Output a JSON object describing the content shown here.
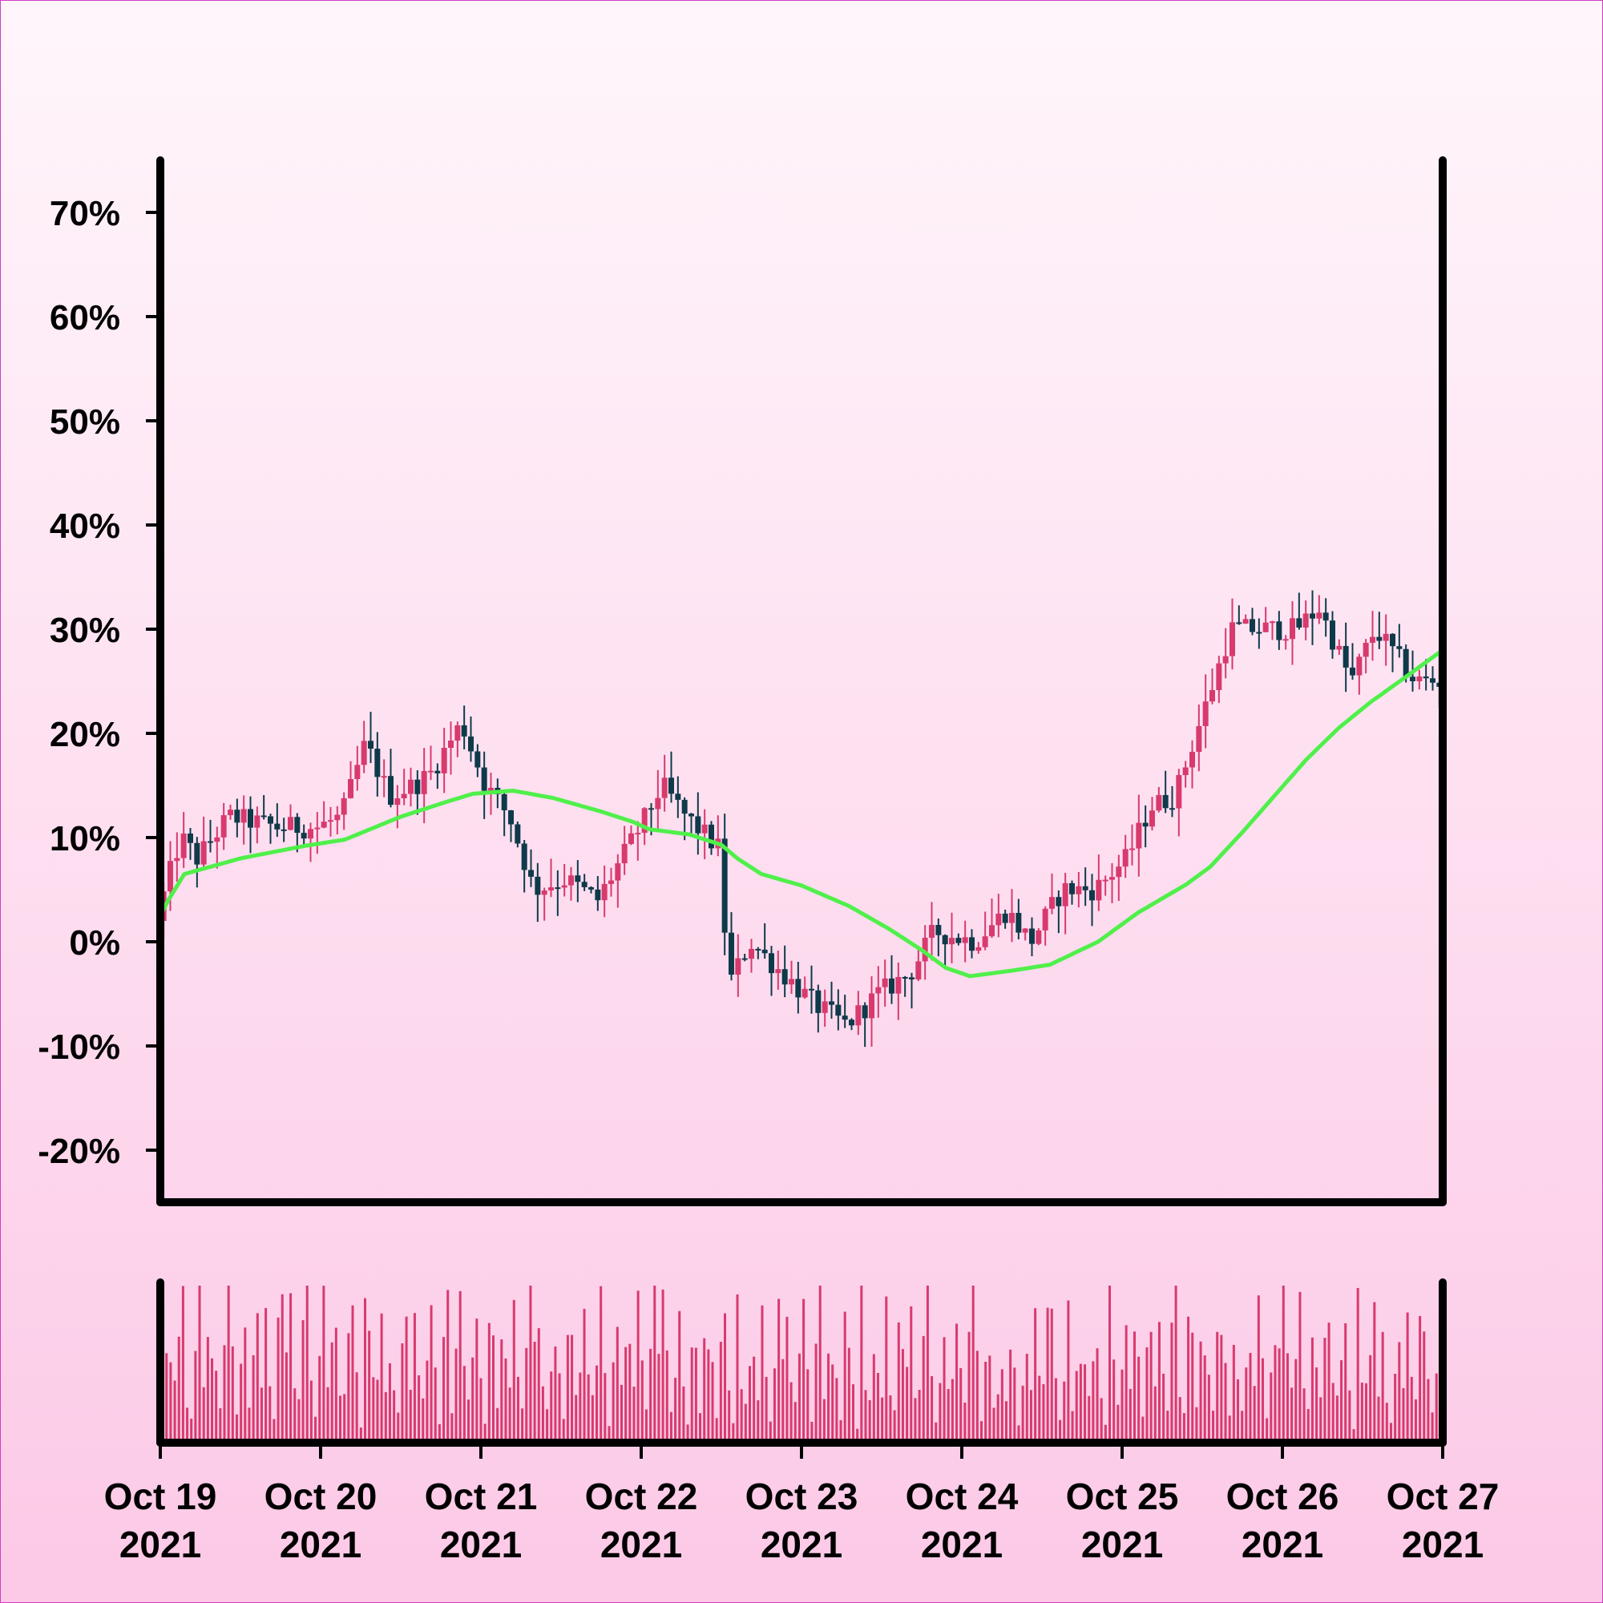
{
  "colors": {
    "up": "#d83a6e",
    "down": "#0e3a4a",
    "ma": "#4ff04a",
    "volume": "#d83a6e",
    "axis": "#000000"
  },
  "chart_data": {
    "type": "candlestick",
    "title": "",
    "xlabel": "",
    "ylabel": "",
    "ylim": [
      -25,
      75
    ],
    "yticks": [
      {
        "value": 70,
        "label": "70%"
      },
      {
        "value": 60,
        "label": "60%"
      },
      {
        "value": 50,
        "label": "50%"
      },
      {
        "value": 40,
        "label": "40%"
      },
      {
        "value": 30,
        "label": "30%"
      },
      {
        "value": 20,
        "label": "20%"
      },
      {
        "value": 10,
        "label": "10%"
      },
      {
        "value": 0,
        "label": "0%"
      },
      {
        "value": -10,
        "label": "-10%"
      },
      {
        "value": -20,
        "label": "-20%"
      }
    ],
    "xticks": [
      {
        "day": 0,
        "line1": "Oct 19",
        "line2": "2021"
      },
      {
        "day": 1,
        "line1": "Oct 20",
        "line2": "2021"
      },
      {
        "day": 2,
        "line1": "Oct 21",
        "line2": "2021"
      },
      {
        "day": 3,
        "line1": "Oct 22",
        "line2": "2021"
      },
      {
        "day": 4,
        "line1": "Oct 23",
        "line2": "2021"
      },
      {
        "day": 5,
        "line1": "Oct 24",
        "line2": "2021"
      },
      {
        "day": 6,
        "line1": "Oct 25",
        "line2": "2021"
      },
      {
        "day": 7,
        "line1": "Oct 26",
        "line2": "2021"
      },
      {
        "day": 8,
        "line1": "Oct 27",
        "line2": "2021"
      }
    ],
    "price_anchors": [
      [
        0,
        2
      ],
      [
        0.05,
        5
      ],
      [
        0.15,
        10
      ],
      [
        0.25,
        8
      ],
      [
        0.45,
        12
      ],
      [
        0.75,
        11
      ],
      [
        1.0,
        11
      ],
      [
        1.15,
        12
      ],
      [
        1.3,
        19
      ],
      [
        1.45,
        14
      ],
      [
        1.6,
        15
      ],
      [
        1.7,
        16
      ],
      [
        1.9,
        21
      ],
      [
        2.05,
        15
      ],
      [
        2.2,
        12
      ],
      [
        2.35,
        5
      ],
      [
        2.55,
        6
      ],
      [
        2.75,
        4
      ],
      [
        2.9,
        8
      ],
      [
        3.05,
        12
      ],
      [
        3.15,
        15
      ],
      [
        3.3,
        12
      ],
      [
        3.5,
        9
      ],
      [
        3.57,
        -4
      ],
      [
        3.7,
        0
      ],
      [
        3.9,
        -3
      ],
      [
        4.1,
        -6
      ],
      [
        4.3,
        -8
      ],
      [
        4.5,
        -5
      ],
      [
        4.7,
        -3
      ],
      [
        4.85,
        1
      ],
      [
        5.1,
        0
      ],
      [
        5.3,
        3
      ],
      [
        5.45,
        0
      ],
      [
        5.65,
        5
      ],
      [
        5.85,
        5
      ],
      [
        6.05,
        8
      ],
      [
        6.2,
        13
      ],
      [
        6.35,
        14
      ],
      [
        6.55,
        23
      ],
      [
        6.7,
        30
      ],
      [
        6.9,
        30
      ],
      [
        7.1,
        30
      ],
      [
        7.25,
        32
      ],
      [
        7.45,
        25
      ],
      [
        7.6,
        30
      ],
      [
        7.75,
        27
      ],
      [
        7.85,
        25
      ],
      [
        8.0,
        25
      ]
    ],
    "moving_average": [
      [
        0,
        2.5
      ],
      [
        0.05,
        4
      ],
      [
        0.15,
        6.5
      ],
      [
        0.5,
        8
      ],
      [
        0.9,
        9.2
      ],
      [
        1.15,
        9.8
      ],
      [
        1.5,
        12
      ],
      [
        1.8,
        13.5
      ],
      [
        1.95,
        14.2
      ],
      [
        2.2,
        14.5
      ],
      [
        2.45,
        13.8
      ],
      [
        2.75,
        12.5
      ],
      [
        2.95,
        11.5
      ],
      [
        3.05,
        10.8
      ],
      [
        3.3,
        10.3
      ],
      [
        3.5,
        9.3
      ],
      [
        3.6,
        8
      ],
      [
        3.75,
        6.5
      ],
      [
        4.0,
        5.4
      ],
      [
        4.3,
        3.4
      ],
      [
        4.55,
        1.2
      ],
      [
        4.75,
        -0.8
      ],
      [
        4.9,
        -2.5
      ],
      [
        5.05,
        -3.3
      ],
      [
        5.3,
        -2.8
      ],
      [
        5.55,
        -2.2
      ],
      [
        5.85,
        0
      ],
      [
        6.1,
        2.8
      ],
      [
        6.4,
        5.5
      ],
      [
        6.55,
        7.2
      ],
      [
        6.75,
        10.5
      ],
      [
        6.95,
        14
      ],
      [
        7.15,
        17.5
      ],
      [
        7.35,
        20.5
      ],
      [
        7.55,
        23
      ],
      [
        7.75,
        25.2
      ],
      [
        8.0,
        28
      ]
    ],
    "volume_levels": [
      0.55,
      0.9,
      0.5,
      0.35,
      0.75,
      0.95,
      0.4,
      0.2,
      0.65,
      0.85,
      0.3,
      0.6,
      0.8,
      0.45,
      0.25,
      0.7,
      1.0,
      0.5,
      0.15,
      0.9,
      0.6,
      0.35,
      0.55,
      0.75,
      0.3,
      0.85,
      0.45,
      0.2,
      0.65,
      0.95
    ]
  }
}
